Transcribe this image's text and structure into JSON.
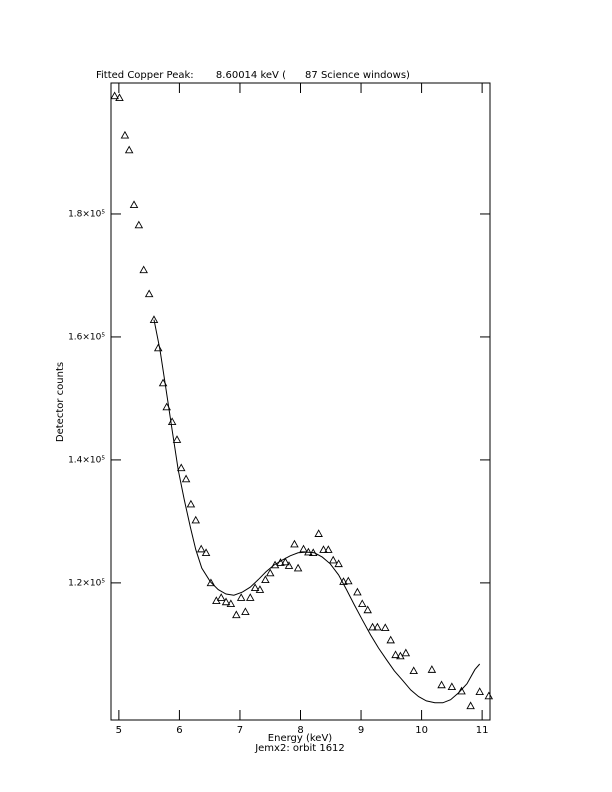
{
  "chart_data": {
    "type": "scatter",
    "title": "Fitted Copper Peak:       8.60014 keV (      87 Science windows)",
    "xlabel": "Energy (keV)",
    "ylabel": "Detector counts",
    "subtitle": "Jemx2: orbit 1612",
    "xlim": [
      4.87,
      11.13
    ],
    "ylim": [
      97700,
      201300
    ],
    "xticks": [
      5,
      6,
      7,
      8,
      9,
      10,
      11
    ],
    "yticks": [
      {
        "value": 120000,
        "label": "1.2×10⁵"
      },
      {
        "value": 140000,
        "label": "1.4×10⁵"
      },
      {
        "value": 160000,
        "label": "1.6×10⁵"
      },
      {
        "value": 180000,
        "label": "1.8×10⁵"
      }
    ],
    "color": "#000000",
    "series": [
      {
        "mode": "markers",
        "marker": "triangle",
        "x": [
          4.93,
          5.01,
          5.1,
          5.17,
          5.25,
          5.33,
          5.41,
          5.5,
          5.58,
          5.65,
          5.73,
          5.79,
          5.88,
          5.96,
          6.03,
          6.11,
          6.19,
          6.27,
          6.36,
          6.44,
          6.52,
          6.61,
          6.69,
          6.77,
          6.85,
          6.94,
          7.02,
          7.09,
          7.17,
          7.25,
          7.33,
          7.42,
          7.5,
          7.58,
          7.67,
          7.75,
          7.81,
          7.9,
          7.96,
          8.05,
          8.13,
          8.21,
          8.3,
          8.38,
          8.46,
          8.54,
          8.63,
          8.71,
          8.79,
          8.94,
          9.02,
          9.11,
          9.19,
          9.27,
          9.4,
          9.49,
          9.57,
          9.65,
          9.74,
          9.87,
          10.17,
          10.33,
          10.5,
          10.66,
          10.81,
          10.96,
          11.11
        ],
        "y": [
          199200,
          198900,
          192800,
          190400,
          181500,
          178200,
          170900,
          167000,
          162800,
          158200,
          152500,
          148600,
          146200,
          143300,
          138700,
          136900,
          132800,
          130200,
          125500,
          124900,
          120000,
          117100,
          117600,
          116900,
          116600,
          114800,
          117600,
          115300,
          117600,
          119200,
          118900,
          120500,
          121600,
          122900,
          123300,
          123400,
          122800,
          126300,
          122400,
          125500,
          125000,
          124900,
          128000,
          125400,
          125400,
          123700,
          123100,
          120200,
          120300,
          118500,
          116600,
          115600,
          112800,
          112800,
          112700,
          110700,
          108300,
          108100,
          108600,
          105700,
          105900,
          103400,
          103100,
          102400,
          100000,
          102300,
          101600
        ]
      },
      {
        "mode": "line",
        "x": [
          5.58,
          5.68,
          5.78,
          5.88,
          5.98,
          6.08,
          6.18,
          6.27,
          6.37,
          6.51,
          6.64,
          6.77,
          6.9,
          7.04,
          7.17,
          7.3,
          7.43,
          7.56,
          7.7,
          7.83,
          7.96,
          8.1,
          8.23,
          8.36,
          8.49,
          8.63,
          8.76,
          8.89,
          9.02,
          9.16,
          9.29,
          9.42,
          9.55,
          9.69,
          9.82,
          9.95,
          10.08,
          10.22,
          10.35,
          10.48,
          10.61,
          10.75,
          10.88,
          10.96
        ],
        "y": [
          162800,
          157900,
          151400,
          144900,
          138400,
          133500,
          129100,
          125400,
          122400,
          120200,
          118900,
          118200,
          118000,
          118500,
          119300,
          120500,
          121800,
          122900,
          123700,
          124400,
          124900,
          125000,
          124900,
          124200,
          123100,
          121300,
          118900,
          116400,
          114000,
          111500,
          109400,
          107500,
          105700,
          104100,
          102600,
          101500,
          100800,
          100500,
          100500,
          101000,
          102100,
          103600,
          105900,
          106800
        ]
      }
    ]
  }
}
